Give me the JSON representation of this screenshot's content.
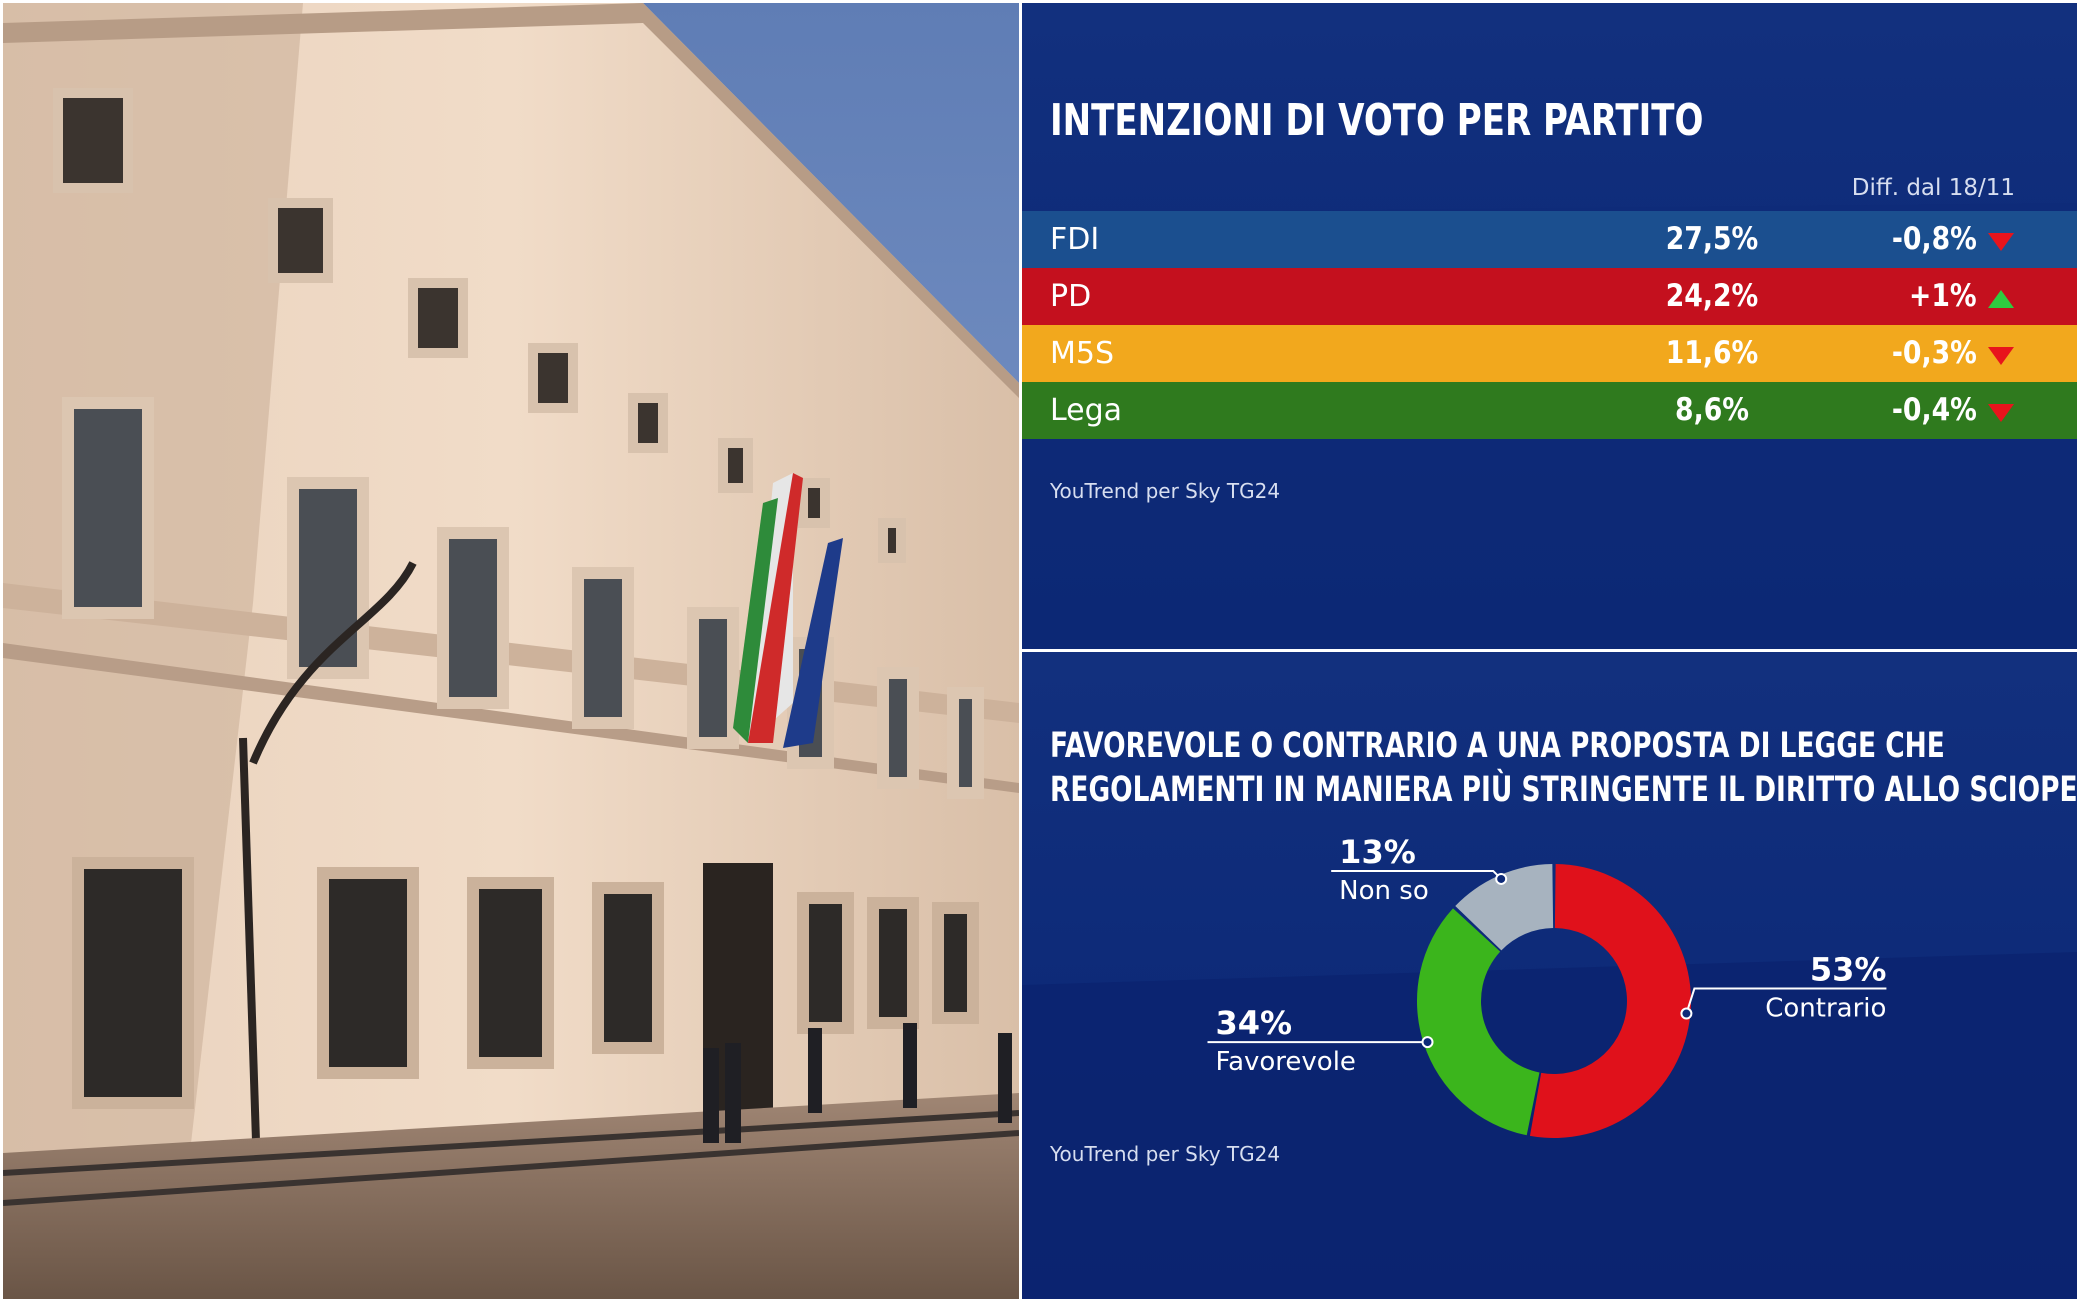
{
  "photo": {
    "subject": "building-facade-with-flags"
  },
  "top_panel": {
    "title": "INTENZIONI DI VOTO PER PARTITO",
    "diff_header": "Diff. dal 18/11",
    "source": "YouTrend per Sky TG24",
    "rows": [
      {
        "party": "FDI",
        "value": "27,5%",
        "diff": "-0,8%",
        "direction": "down",
        "color": "#1b4f8f"
      },
      {
        "party": "PD",
        "value": "24,2%",
        "diff": "+1%",
        "direction": "up",
        "color": "#c4101e"
      },
      {
        "party": "M5S",
        "value": "11,6%",
        "diff": "-0,3%",
        "direction": "down",
        "color": "#f2a81d"
      },
      {
        "party": "Lega",
        "value": "8,6%",
        "diff": "-0,4%",
        "direction": "down",
        "color": "#2f7a1e"
      }
    ]
  },
  "bottom_panel": {
    "title_line1": "FAVOREVOLE O CONTRARIO A UNA PROPOSTA DI LEGGE CHE",
    "title_line2": "REGOLAMENTI IN MANIERA PIÙ STRINGENTE IL DIRITTO ALLO SCIOPERO?",
    "source": "YouTrend per Sky TG24"
  },
  "chart_data": [
    {
      "type": "bar",
      "title": "INTENZIONI DI VOTO PER PARTITO",
      "categories": [
        "FDI",
        "PD",
        "M5S",
        "Lega"
      ],
      "values": [
        27.5,
        24.2,
        11.6,
        8.6
      ],
      "diff_header": "Diff. dal 18/11",
      "diffs": [
        -0.8,
        1,
        -0.3,
        -0.4
      ]
    },
    {
      "type": "pie",
      "title": "FAVOREVOLE O CONTRARIO A UNA PROPOSTA DI LEGGE CHE REGOLAMENTI IN MANIERA PIÙ STRINGENTE IL DIRITTO ALLO SCIOPERO?",
      "slices": [
        {
          "label": "Contrario",
          "value": 53,
          "value_label": "53%",
          "color": "#e0111b"
        },
        {
          "label": "Favorevole",
          "value": 34,
          "value_label": "34%",
          "color": "#3bb51c"
        },
        {
          "label": "Non so",
          "value": 13,
          "value_label": "13%",
          "color": "#a7b3bf"
        }
      ]
    }
  ]
}
